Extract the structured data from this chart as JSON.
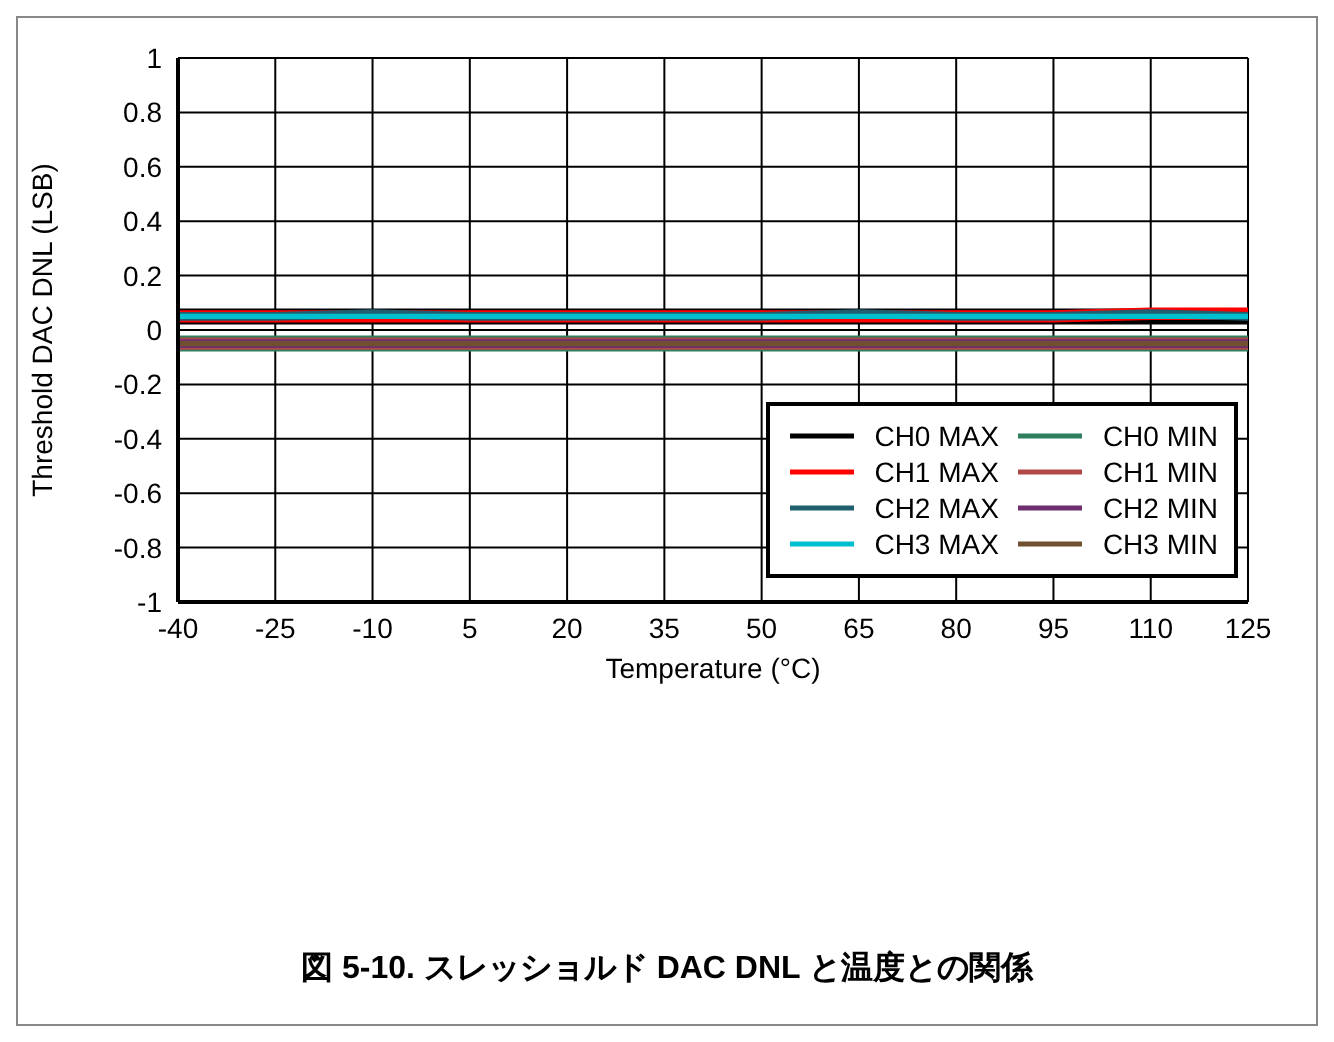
{
  "chart_data": {
    "type": "line",
    "title": "図 5-10. スレッショルド DAC DNL と温度との関係",
    "xlabel": "Temperature (°C)",
    "ylabel": "Threshold DAC DNL (LSB)",
    "x": [
      -40,
      -25,
      -10,
      5,
      20,
      35,
      50,
      65,
      80,
      95,
      110,
      125
    ],
    "series": [
      {
        "name": "CH0 MAX",
        "color": "#000000",
        "values": [
          0.05,
          0.05,
          0.05,
          0.05,
          0.05,
          0.05,
          0.05,
          0.05,
          0.05,
          0.05,
          0.05,
          0.05
        ]
      },
      {
        "name": "CH1 MAX",
        "color": "#ff0000",
        "values": [
          0.05,
          0.05,
          0.05,
          0.05,
          0.05,
          0.05,
          0.05,
          0.05,
          0.05,
          0.05,
          0.06,
          0.06
        ]
      },
      {
        "name": "CH2 MAX",
        "color": "#1f5f6f",
        "values": [
          0.05,
          0.05,
          0.06,
          0.05,
          0.05,
          0.05,
          0.05,
          0.06,
          0.05,
          0.05,
          0.06,
          0.05
        ]
      },
      {
        "name": "CH3 MAX",
        "color": "#00c0d0",
        "values": [
          0.05,
          0.05,
          0.05,
          0.05,
          0.05,
          0.05,
          0.05,
          0.05,
          0.05,
          0.05,
          0.05,
          0.05
        ]
      },
      {
        "name": "CH0 MIN",
        "color": "#2f7f5f",
        "values": [
          -0.05,
          -0.05,
          -0.05,
          -0.05,
          -0.05,
          -0.05,
          -0.05,
          -0.05,
          -0.05,
          -0.05,
          -0.05,
          -0.05
        ]
      },
      {
        "name": "CH1 MIN",
        "color": "#b04848",
        "values": [
          -0.05,
          -0.05,
          -0.05,
          -0.05,
          -0.05,
          -0.05,
          -0.05,
          -0.05,
          -0.05,
          -0.05,
          -0.05,
          -0.05
        ]
      },
      {
        "name": "CH2 MIN",
        "color": "#6f2f6f",
        "values": [
          -0.05,
          -0.05,
          -0.05,
          -0.05,
          -0.05,
          -0.05,
          -0.05,
          -0.05,
          -0.05,
          -0.05,
          -0.05,
          -0.05
        ]
      },
      {
        "name": "CH3 MIN",
        "color": "#6f5030",
        "values": [
          -0.05,
          -0.05,
          -0.05,
          -0.05,
          -0.05,
          -0.05,
          -0.05,
          -0.05,
          -0.05,
          -0.05,
          -0.05,
          -0.05
        ]
      }
    ],
    "xlim": [
      -40,
      125
    ],
    "xticks": [
      -40,
      -25,
      -10,
      5,
      20,
      35,
      50,
      65,
      80,
      95,
      110,
      125
    ],
    "ylim": [
      -1,
      1
    ],
    "yticks": [
      -1,
      -0.8,
      -0.6,
      -0.4,
      -0.2,
      0,
      0.2,
      0.4,
      0.6,
      0.8,
      1
    ],
    "grid": true,
    "legend": "bottom right",
    "marker": "none",
    "line_style": "solid"
  }
}
